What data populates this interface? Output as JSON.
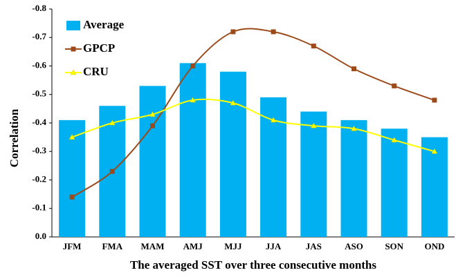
{
  "chart_data": {
    "type": "bar-line",
    "x_label": "The averaged SST over three consecutive months",
    "y_label": "Correlation",
    "categories": [
      "JFM",
      "FMA",
      "MAM",
      "AMJ",
      "MJJ",
      "JJA",
      "JAS",
      "ASO",
      "SON",
      "OND"
    ],
    "series": [
      {
        "name": "Average",
        "type": "bar",
        "color": "#00b0f0",
        "values": [
          -0.41,
          -0.46,
          -0.53,
          -0.61,
          -0.58,
          -0.49,
          -0.44,
          -0.41,
          -0.38,
          -0.35
        ]
      },
      {
        "name": "GPCP",
        "type": "line",
        "color": "#9c4a1a",
        "marker": "square",
        "values": [
          -0.14,
          -0.23,
          -0.39,
          -0.6,
          -0.72,
          -0.72,
          -0.67,
          -0.59,
          -0.53,
          -0.48
        ]
      },
      {
        "name": "CRU",
        "type": "line",
        "color": "#ffff00",
        "marker": "triangle",
        "values": [
          -0.35,
          -0.4,
          -0.43,
          -0.48,
          -0.47,
          -0.41,
          -0.39,
          -0.38,
          -0.34,
          -0.3
        ]
      }
    ],
    "ylim": [
      0,
      -0.8
    ],
    "yticks": [
      {
        "value": 0,
        "label": "0.0"
      },
      -0.1,
      -0.2,
      -0.3,
      -0.4,
      -0.5,
      -0.6,
      -0.7,
      -0.8
    ],
    "grid": false,
    "legend": "upper left"
  }
}
